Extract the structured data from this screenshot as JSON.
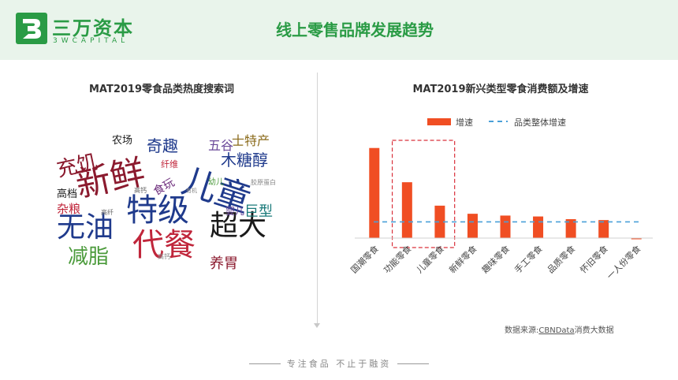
{
  "header": {
    "logo_name": "三万资本",
    "logo_sub": "3WCAPITAL",
    "title": "线上零售品牌发展趋势",
    "brand_color": "#2a9b45",
    "background_color": "#e9f4eb"
  },
  "left": {
    "title": "MAT2019零食品类热度搜索词",
    "words": [
      {
        "text": "新鲜",
        "color": "#8b1a2e"
      },
      {
        "text": "儿童",
        "color": "#1f3a8c"
      },
      {
        "text": "特级",
        "color": "#1f3a8c"
      },
      {
        "text": "无油",
        "color": "#1f3a8c"
      },
      {
        "text": "代餐",
        "color": "#c0263b"
      },
      {
        "text": "超大",
        "color": "#1a1a1a"
      },
      {
        "text": "减脂",
        "color": "#4a9a3a"
      },
      {
        "text": "充饥",
        "color": "#8b1a2e"
      },
      {
        "text": "奇趣",
        "color": "#1f3a8c"
      },
      {
        "text": "五谷",
        "color": "#6b4a9a"
      },
      {
        "text": "士特产",
        "color": "#8a6a1a"
      },
      {
        "text": "木糖醇",
        "color": "#1f3a8c"
      },
      {
        "text": "农场",
        "color": "#1a1a1a"
      },
      {
        "text": "高档",
        "color": "#1a1a1a"
      },
      {
        "text": "杂粮",
        "color": "#c0263b"
      },
      {
        "text": "巨型",
        "color": "#1a7a7a"
      },
      {
        "text": "养胃",
        "color": "#8b1a2e"
      },
      {
        "text": "食玩",
        "color": "#6b2a7a"
      },
      {
        "text": "纤维",
        "color": "#c0263b"
      },
      {
        "text": "婴儿",
        "color": "#6b4a9a"
      },
      {
        "text": "幼儿",
        "color": "#4a9a3a"
      },
      {
        "text": "高钙",
        "color": "#666666"
      },
      {
        "text": "高纤",
        "color": "#666666"
      },
      {
        "text": "高钙",
        "color": "#888888"
      },
      {
        "text": "有机",
        "color": "#888888"
      },
      {
        "text": "胶原蛋白",
        "color": "#888888"
      }
    ]
  },
  "right": {
    "title": "MAT2019新兴类型零食消费额及增速",
    "source_prefix": "数据来源:",
    "source_highlight": "CBNData",
    "source_suffix": "消费大数据",
    "chart_data": {
      "type": "bar",
      "categories": [
        "国潮零食",
        "功能零食",
        "儿童零食",
        "新鲜零食",
        "趣味零食",
        "手工零食",
        "品质零食",
        "怀旧零食",
        "一人份零食"
      ],
      "series": [
        {
          "name": "增速",
          "values": [
            100,
            62,
            36,
            27,
            25,
            24,
            21,
            20,
            -1
          ],
          "color": "#f04e23"
        },
        {
          "name": "品类整体增速",
          "values": [
            18,
            18,
            18,
            18,
            18,
            18,
            18,
            18,
            18
          ],
          "color": "#4aa0d8",
          "style": "dashed"
        }
      ],
      "ylim": [
        -5,
        105
      ],
      "legend": "top",
      "highlight_categories": [
        "功能零食",
        "儿童零食"
      ],
      "highlight_color": "#d9303b"
    }
  },
  "footer": {
    "text": "专注食品 不止于融资"
  }
}
